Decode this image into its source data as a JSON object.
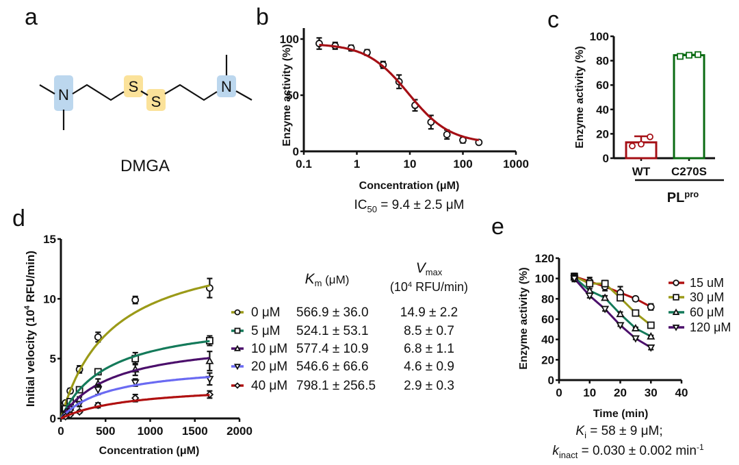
{
  "panels": {
    "a": {
      "letter": "a",
      "molecule_name": "DMGA",
      "atoms": {
        "n_left": "N",
        "s1": "S",
        "s2": "S",
        "n_right": "N"
      },
      "colors": {
        "nitrogen_highlight": "#bcd7ee",
        "sulfur_highlight": "#fbe29a"
      }
    },
    "b": {
      "letter": "b",
      "annotation": {
        "prefix": "IC",
        "sub": "50",
        "suffix": " = 9.4 ± 2.5 μM"
      }
    },
    "c": {
      "letter": "c",
      "group_label": "PL",
      "group_label_sup": "pro"
    },
    "d": {
      "letter": "d",
      "table": {
        "km_header": "K",
        "km_sub": "m",
        "km_unit": " (μM)",
        "vmax_header": "V",
        "vmax_sub": "max",
        "vmax_unit_pre": "(10",
        "vmax_unit_sup": "4",
        "vmax_unit_post": " RFU/min)",
        "rows": [
          {
            "label": "0 μM",
            "km": "566.9 ± 36.0",
            "vmax": "14.9 ± 2.2"
          },
          {
            "label": "5 μM",
            "km": "524.1 ± 53.1",
            "vmax": "8.5 ± 0.7"
          },
          {
            "label": "10 μM",
            "km": "577.4 ± 10.9",
            "vmax": "6.8 ± 1.1"
          },
          {
            "label": "20 μM",
            "km": "546.6 ± 66.6",
            "vmax": "4.6 ± 0.9"
          },
          {
            "label": "40 μM",
            "km": "798.1 ± 256.5",
            "vmax": "2.9 ± 0.3"
          }
        ]
      }
    },
    "e": {
      "letter": "e",
      "annotation_line1": {
        "pre": "K",
        "sub": "i",
        "post": " = 58 ± 9 μM;"
      },
      "annotation_line2": {
        "pre": "k",
        "sub": "inact",
        "post": " = 0.030 ± 0.002 min",
        "sup": "-1"
      }
    }
  },
  "chart_data": [
    {
      "id": "b",
      "type": "scatter",
      "title": "",
      "xlabel": "Concentration (μM)",
      "ylabel": "Enzyme activity (%)",
      "xscale": "log",
      "xlim": [
        0.1,
        1000
      ],
      "ylim": [
        0,
        110
      ],
      "xticks": [
        "0.1",
        "1",
        "10",
        "100",
        "1000"
      ],
      "yticks": [
        "0",
        "50",
        "100"
      ],
      "fit_color": "#a50f15",
      "fit": {
        "model": "four-parameter logistic",
        "top": 96,
        "bottom": 7,
        "ic50": 9.4,
        "hill": 1.1
      },
      "points": [
        {
          "x": 0.195,
          "y": 96,
          "err": 5
        },
        {
          "x": 0.39,
          "y": 94,
          "err": 3
        },
        {
          "x": 0.78,
          "y": 92,
          "err": 2.5
        },
        {
          "x": 1.56,
          "y": 88,
          "err": 2.5
        },
        {
          "x": 3.125,
          "y": 77,
          "err": 3
        },
        {
          "x": 6.25,
          "y": 62,
          "err": 6
        },
        {
          "x": 12.5,
          "y": 41,
          "err": 5
        },
        {
          "x": 25,
          "y": 26,
          "err": 6
        },
        {
          "x": 50,
          "y": 15,
          "err": 4
        },
        {
          "x": 100,
          "y": 10,
          "err": 2.5
        },
        {
          "x": 200,
          "y": 8,
          "err": 1
        }
      ]
    },
    {
      "id": "c",
      "type": "bar",
      "xlabel": "",
      "ylabel": "Enzyme activity (%)",
      "ylim": [
        0,
        100
      ],
      "yticks": [
        "0",
        "20",
        "40",
        "60",
        "80",
        "100"
      ],
      "categories": [
        "WT",
        "C270S"
      ],
      "values": [
        13,
        84.5
      ],
      "errors": [
        5,
        0.5
      ],
      "colors": [
        "#a50f15",
        "#0a6b12"
      ],
      "replicates": [
        [
          10,
          11.5,
          17.5
        ],
        [
          83.5,
          84.5,
          85
        ]
      ]
    },
    {
      "id": "d",
      "type": "line",
      "xlabel": "Concentration (μM)",
      "ylabel": "Initial velocity (10⁴ RFU/min)",
      "ylabel_parts": {
        "pre": "Initial velocity (10",
        "sup": "4",
        "post": " RFU/min)"
      },
      "xlim": [
        0,
        2000
      ],
      "ylim": [
        0,
        15
      ],
      "xticks": [
        "0",
        "500",
        "1000",
        "1500",
        "2000"
      ],
      "yticks": [
        "0",
        "5",
        "10",
        "15"
      ],
      "x": [
        52,
        104,
        208,
        416,
        833,
        1666
      ],
      "series": [
        {
          "name": "0 μM",
          "color": "#9b9a18",
          "marker": "circle",
          "km": 566.9,
          "vmax": 14.9,
          "values": [
            1.3,
            2.3,
            4.1,
            6.8,
            9.9,
            10.9
          ],
          "errors": [
            0.15,
            0.2,
            0.3,
            0.4,
            0.3,
            0.8
          ]
        },
        {
          "name": "5 μM",
          "color": "#147a5a",
          "marker": "square",
          "km": 524.1,
          "vmax": 8.5,
          "values": [
            0.8,
            1.4,
            2.4,
            3.9,
            5.0,
            6.5
          ],
          "errors": [
            0.1,
            0.15,
            0.2,
            0.2,
            0.5,
            0.4
          ]
        },
        {
          "name": "10 μM",
          "color": "#4b0f6b",
          "marker": "triangle-up",
          "km": 577.4,
          "vmax": 6.8,
          "values": [
            0.5,
            0.9,
            1.6,
            2.9,
            4.1,
            4.8
          ],
          "errors": [
            0.1,
            0.1,
            0.2,
            0.4,
            0.5,
            0.8
          ]
        },
        {
          "name": "20 μM",
          "color": "#6a6af2",
          "marker": "triangle-down",
          "km": 546.6,
          "vmax": 4.6,
          "values": [
            0.3,
            0.6,
            1.2,
            2.4,
            3.0,
            3.3
          ],
          "errors": [
            0.1,
            0.1,
            0.2,
            0.4,
            0.3,
            0.5
          ]
        },
        {
          "name": "40 μM",
          "color": "#b01010",
          "marker": "diamond",
          "km": 798.1,
          "vmax": 2.9,
          "values": [
            0.15,
            0.3,
            0.55,
            1.1,
            1.7,
            2.0
          ],
          "errors": [
            0.05,
            0.05,
            0.1,
            0.2,
            0.3,
            0.3
          ]
        }
      ]
    },
    {
      "id": "e",
      "type": "line",
      "xlabel": "Time (min)",
      "ylabel": "Enzyme activity (%)",
      "xlim": [
        0,
        40
      ],
      "ylim": [
        0,
        120
      ],
      "xticks": [
        "0",
        "10",
        "20",
        "30",
        "40"
      ],
      "yticks": [
        "0",
        "20",
        "40",
        "60",
        "80",
        "100",
        "120"
      ],
      "x": [
        5,
        10,
        15,
        20,
        25,
        30
      ],
      "legend_position": "right",
      "series": [
        {
          "name": "15 uM",
          "color": "#b01010",
          "marker": "circle",
          "values": [
            102,
            97,
            92,
            86,
            80,
            72
          ],
          "errors": [
            3,
            4,
            4,
            6,
            2,
            3
          ]
        },
        {
          "name": "30 μM",
          "color": "#9b9a18",
          "marker": "square",
          "values": [
            102,
            95,
            95,
            81,
            66,
            54
          ],
          "errors": [
            3,
            3,
            3,
            2,
            1,
            1
          ]
        },
        {
          "name": "60 μM",
          "color": "#147a5a",
          "marker": "triangle-up",
          "values": [
            101,
            88,
            81,
            65,
            51,
            43
          ],
          "errors": [
            3,
            2,
            2,
            2,
            1,
            1
          ]
        },
        {
          "name": "120 μM",
          "color": "#4b0f6b",
          "marker": "triangle-down",
          "values": [
            100,
            83,
            70,
            54,
            41,
            32
          ],
          "errors": [
            3,
            2,
            2,
            1,
            1,
            2
          ]
        }
      ]
    }
  ]
}
